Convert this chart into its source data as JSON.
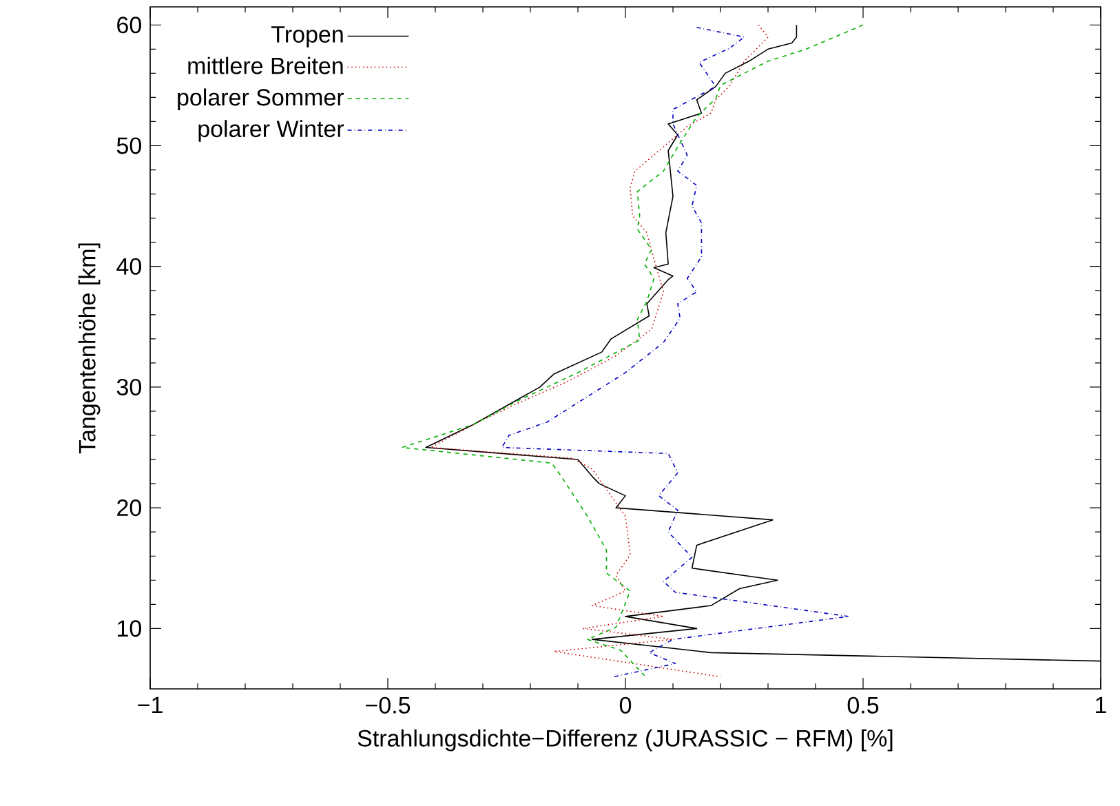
{
  "chart_data": {
    "type": "line",
    "xlabel": "Strahlungsdichte−Differenz (JURASSIC − RFM) [%]",
    "ylabel": "Tangentenhöhe [km]",
    "xlim": [
      -1,
      1
    ],
    "ylim": [
      5,
      61.5
    ],
    "xticks": [
      {
        "value": -1,
        "label": "−1"
      },
      {
        "value": -0.5,
        "label": "−0.5"
      },
      0,
      0.5,
      1
    ],
    "yticks": [
      10,
      20,
      30,
      40,
      50,
      60
    ],
    "grid": false,
    "legend": "top left",
    "marker": "none",
    "series": [
      {
        "name": "Tropen",
        "color": "#000000",
        "line_style": "solid",
        "x": [
          0.36,
          0.36,
          0.35,
          0.3,
          0.26,
          0.21,
          0.19,
          0.15,
          0.16,
          0.09,
          0.11,
          0.09,
          0.1,
          0.085,
          0.09,
          0.06,
          0.1,
          0.09,
          0.045,
          0.05,
          -0.03,
          -0.05,
          -0.15,
          -0.18,
          -0.23,
          -0.32,
          -0.42,
          -0.1,
          -0.07,
          -0.055,
          0,
          -0.02,
          0.31,
          0.15,
          0.14,
          0.32,
          0.24,
          0.18,
          0,
          0.15,
          -0.07,
          0.18,
          1.0
        ],
        "values": [
          60,
          59,
          58.5,
          58,
          57,
          56,
          54.9,
          53.8,
          52.7,
          51.8,
          50.9,
          49.6,
          45.8,
          42.8,
          40.2,
          39.9,
          39.2,
          38.9,
          36.9,
          35.9,
          34,
          32.9,
          31.1,
          30,
          28.9,
          26.9,
          25,
          24,
          22.6,
          22,
          21,
          20,
          19,
          16.9,
          15,
          14,
          13.3,
          11.9,
          11,
          10,
          9.1,
          8,
          7.3
        ]
      },
      {
        "name": "mittlere Breiten",
        "color": "#cc0000",
        "line_style": "dotted",
        "x": [
          0.28,
          0.3,
          0.25,
          0.22,
          0.19,
          0.18,
          0.13,
          0.08,
          0.02,
          0.01,
          0.015,
          0.045,
          0.055,
          0.08,
          0.055,
          -0.02,
          -0.12,
          -0.23,
          -0.31,
          -0.41,
          -0.11,
          -0.07,
          0,
          0.01,
          -0.02,
          0,
          -0.07,
          0.08,
          -0.09,
          0.1,
          -0.15,
          0.2
        ],
        "values": [
          60,
          59,
          57,
          55,
          53.8,
          52.7,
          51.6,
          49.9,
          47.9,
          46.5,
          44.2,
          42.8,
          41.3,
          37.9,
          34.8,
          32.6,
          30.5,
          28.6,
          27.1,
          25,
          24.1,
          23.2,
          19.3,
          16.1,
          14.4,
          13.1,
          11.9,
          11,
          10,
          9.1,
          8.1,
          6
        ]
      },
      {
        "name": "polarer Sommer",
        "color": "#00b000",
        "line_style": "dashed",
        "x": [
          0.5,
          0.44,
          0.38,
          0.3,
          0.25,
          0.2,
          0.19,
          0.15,
          0.11,
          0.08,
          0.025,
          0.03,
          0.025,
          0.055,
          0.04,
          0.06,
          0.045,
          0.025,
          0.03,
          -0.1,
          -0.23,
          -0.32,
          -0.47,
          -0.155,
          -0.135,
          -0.125,
          -0.08,
          -0.04,
          -0.04,
          0.01,
          -0.02,
          -0.08,
          -0.01,
          0.04
        ],
        "values": [
          60,
          59,
          58,
          57,
          56,
          55,
          53.9,
          52.4,
          49.9,
          47.9,
          46.2,
          44.2,
          43.1,
          41.4,
          40.2,
          39,
          37.1,
          35.6,
          33.9,
          31.2,
          28.8,
          26.9,
          25,
          23.7,
          22.6,
          22,
          19.3,
          16.5,
          14.6,
          13.1,
          10.1,
          9.1,
          8.2,
          6.1
        ]
      },
      {
        "name": "polarer Winter",
        "color": "#0000c0",
        "line_style": "dashdot",
        "x": [
          0.15,
          0.25,
          0.22,
          0.155,
          0.19,
          0.1,
          0.1,
          0.13,
          0.11,
          0.15,
          0.14,
          0.16,
          0.16,
          0.13,
          0.15,
          0.11,
          0.115,
          0.08,
          0,
          -0.165,
          -0.245,
          -0.26,
          0.09,
          0.11,
          0.07,
          0.11,
          0.09,
          0.14,
          0.08,
          0.105,
          0.47,
          0.1,
          0.05,
          0.105,
          -0.025
        ],
        "values": [
          59.8,
          59,
          58.1,
          56.9,
          54.9,
          53,
          51.8,
          49.2,
          47.9,
          46.7,
          45,
          43.6,
          40.8,
          39,
          37.9,
          36.9,
          35.7,
          33.7,
          31.2,
          27.1,
          26,
          25,
          24.5,
          22.9,
          21,
          19.8,
          18,
          15.9,
          13.9,
          13,
          11,
          9.1,
          8,
          7.1,
          6
        ]
      }
    ]
  }
}
